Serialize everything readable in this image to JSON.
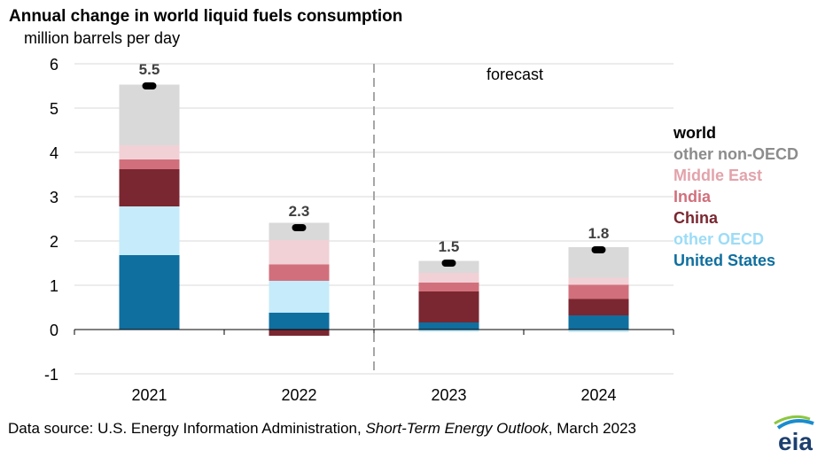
{
  "header": {
    "title": "Annual change in world liquid fuels consumption",
    "subtitle": "million barrels per day"
  },
  "footer": {
    "source_prefix": "Data source: U.S. Energy Information Administration, ",
    "source_italic": "Short-Term Energy Outlook",
    "source_suffix": ", March 2023",
    "logo_text": "eia"
  },
  "chart_data": {
    "type": "bar",
    "stacked": true,
    "categories": [
      "2021",
      "2022",
      "2023",
      "2024"
    ],
    "ylim": [
      -1,
      6
    ],
    "yticks": [
      -1,
      0,
      1,
      2,
      3,
      4,
      5,
      6
    ],
    "grid": true,
    "forecast_label": "forecast",
    "forecast_starts_after": "2022",
    "legend_position": "right",
    "series": [
      {
        "name": "United States",
        "color": "#0f6f9f",
        "values": [
          1.68,
          0.38,
          0.16,
          0.32
        ]
      },
      {
        "name": "other OECD",
        "color": "#c6ebfb",
        "values": [
          1.1,
          0.72,
          -0.05,
          -0.06
        ]
      },
      {
        "name": "China",
        "color": "#7a2731",
        "values": [
          0.84,
          -0.14,
          0.7,
          0.37
        ]
      },
      {
        "name": "India",
        "color": "#d1707c",
        "values": [
          0.22,
          0.37,
          0.2,
          0.32
        ]
      },
      {
        "name": "Middle East",
        "color": "#f1d1d6",
        "values": [
          0.32,
          0.55,
          0.22,
          0.16
        ]
      },
      {
        "name": "other non-OECD",
        "color": "#d9d9d9",
        "values": [
          1.37,
          0.39,
          0.27,
          0.69
        ]
      }
    ],
    "world": {
      "name": "world",
      "color": "#000000",
      "values": [
        5.5,
        2.3,
        1.5,
        1.8
      ],
      "labels": [
        "5.5",
        "2.3",
        "1.5",
        "1.8"
      ]
    }
  }
}
